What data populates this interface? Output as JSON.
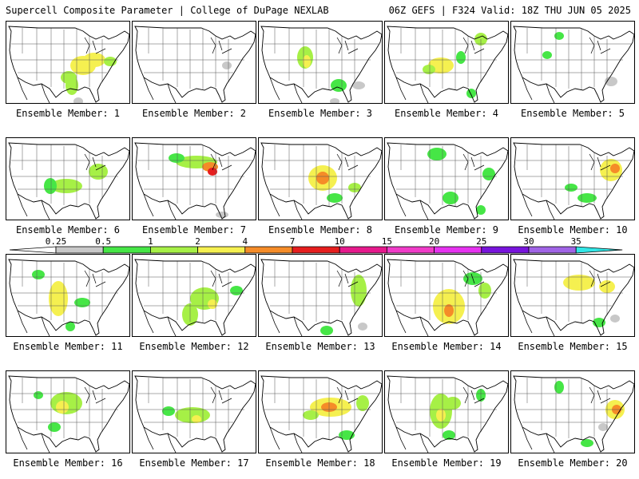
{
  "header": {
    "left": "Supercell Composite Parameter | College of DuPage NEXLAB",
    "right": "06Z GEFS | F324 Valid: 18Z THU JUN 05 2025"
  },
  "colorbar": {
    "bins": [
      {
        "low": 0.25,
        "label": "0.25",
        "color": "#c8c8c8"
      },
      {
        "low": 0.5,
        "label": "0.5",
        "color": "#46e646"
      },
      {
        "low": 1,
        "label": "1",
        "color": "#a6f046"
      },
      {
        "low": 2,
        "label": "2",
        "color": "#f5f050"
      },
      {
        "low": 4,
        "label": "4",
        "color": "#f58c28"
      },
      {
        "low": 7,
        "label": "7",
        "color": "#e61e1e"
      },
      {
        "low": 10,
        "label": "10",
        "color": "#e6198c"
      },
      {
        "low": 15,
        "label": "15",
        "color": "#f03cc8"
      },
      {
        "low": 20,
        "label": "20",
        "color": "#e632f0"
      },
      {
        "low": 25,
        "label": "25",
        "color": "#7814dc"
      },
      {
        "low": 30,
        "label": "30",
        "color": "#a064e6"
      },
      {
        "low": 35,
        "label": "35",
        "color": "#32e6e6"
      }
    ]
  },
  "panels": [
    {
      "label": "Ensemble Member: 1",
      "blobs": [
        [
          96,
          55,
          16,
          12,
          2
        ],
        [
          110,
          48,
          14,
          9,
          3
        ],
        [
          82,
          80,
          8,
          12,
          1
        ],
        [
          78,
          70,
          10,
          8,
          1
        ],
        [
          130,
          50,
          8,
          6,
          1
        ],
        [
          90,
          100,
          6,
          5,
          0.3
        ]
      ]
    },
    {
      "label": "Ensemble Member: 2",
      "blobs": [
        [
          118,
          55,
          6,
          5,
          0.4
        ]
      ]
    },
    {
      "label": "Ensemble Member: 3",
      "blobs": [
        [
          58,
          45,
          10,
          14,
          1
        ],
        [
          60,
          50,
          5,
          8,
          2
        ],
        [
          100,
          80,
          10,
          8,
          0.6
        ],
        [
          125,
          80,
          8,
          5,
          0.3
        ],
        [
          95,
          100,
          6,
          4,
          0.3
        ]
      ]
    },
    {
      "label": "Ensemble Member: 4",
      "blobs": [
        [
          70,
          55,
          16,
          10,
          2
        ],
        [
          55,
          60,
          8,
          6,
          1
        ],
        [
          120,
          22,
          8,
          8,
          1
        ],
        [
          95,
          45,
          6,
          8,
          0.6
        ],
        [
          108,
          90,
          6,
          6,
          0.5
        ]
      ]
    },
    {
      "label": "Ensemble Member: 5",
      "blobs": [
        [
          60,
          18,
          6,
          5,
          0.6
        ],
        [
          45,
          42,
          6,
          5,
          0.6
        ],
        [
          125,
          75,
          8,
          6,
          0.3
        ]
      ]
    },
    {
      "label": "Ensemble Member: 6",
      "blobs": [
        [
          75,
          60,
          20,
          9,
          1
        ],
        [
          115,
          42,
          12,
          10,
          1
        ],
        [
          55,
          60,
          8,
          10,
          0.6
        ]
      ]
    },
    {
      "label": "Ensemble Member: 7",
      "blobs": [
        [
          80,
          30,
          26,
          8,
          1
        ],
        [
          97,
          36,
          10,
          6,
          5
        ],
        [
          100,
          42,
          6,
          5,
          8
        ],
        [
          55,
          25,
          10,
          6,
          0.6
        ],
        [
          112,
          96,
          8,
          4,
          0.3
        ]
      ]
    },
    {
      "label": "Ensemble Member: 8",
      "blobs": [
        [
          80,
          50,
          18,
          16,
          2
        ],
        [
          80,
          50,
          8,
          8,
          6
        ],
        [
          120,
          62,
          8,
          6,
          1
        ],
        [
          95,
          75,
          10,
          6,
          0.6
        ]
      ]
    },
    {
      "label": "Ensemble Member: 9",
      "blobs": [
        [
          65,
          20,
          12,
          8,
          0.6
        ],
        [
          82,
          75,
          10,
          8,
          0.6
        ],
        [
          130,
          45,
          8,
          8,
          0.6
        ],
        [
          120,
          90,
          6,
          6,
          0.6
        ]
      ]
    },
    {
      "label": "Ensemble Member: 10",
      "blobs": [
        [
          125,
          40,
          14,
          14,
          2
        ],
        [
          130,
          38,
          6,
          6,
          5
        ],
        [
          95,
          75,
          12,
          6,
          0.6
        ],
        [
          75,
          62,
          8,
          5,
          0.6
        ]
      ]
    },
    {
      "label": "Ensemble Member: 11",
      "blobs": [
        [
          65,
          55,
          12,
          22,
          2
        ],
        [
          70,
          60,
          6,
          10,
          3
        ],
        [
          40,
          25,
          8,
          6,
          0.6
        ],
        [
          95,
          60,
          10,
          6,
          0.6
        ],
        [
          80,
          90,
          6,
          6,
          0.6
        ]
      ]
    },
    {
      "label": "Ensemble Member: 12",
      "blobs": [
        [
          90,
          55,
          18,
          14,
          1
        ],
        [
          72,
          75,
          10,
          14,
          1
        ],
        [
          100,
          62,
          6,
          6,
          3
        ],
        [
          130,
          45,
          8,
          6,
          0.6
        ]
      ]
    },
    {
      "label": "Ensemble Member: 13",
      "blobs": [
        [
          125,
          45,
          10,
          20,
          1
        ],
        [
          85,
          95,
          8,
          6,
          0.6
        ],
        [
          130,
          90,
          6,
          5,
          0.3
        ]
      ]
    },
    {
      "label": "Ensemble Member: 14",
      "blobs": [
        [
          80,
          65,
          20,
          22,
          2
        ],
        [
          80,
          70,
          6,
          8,
          4
        ],
        [
          110,
          30,
          12,
          8,
          0.6
        ],
        [
          125,
          45,
          8,
          10,
          1
        ]
      ]
    },
    {
      "label": "Ensemble Member: 15",
      "blobs": [
        [
          85,
          35,
          20,
          10,
          2
        ],
        [
          120,
          40,
          10,
          8,
          2
        ],
        [
          110,
          85,
          8,
          6,
          0.6
        ],
        [
          130,
          80,
          6,
          5,
          0.3
        ]
      ]
    },
    {
      "label": "Ensemble Member: 16",
      "blobs": [
        [
          75,
          40,
          20,
          14,
          1
        ],
        [
          70,
          45,
          8,
          8,
          3
        ],
        [
          40,
          30,
          6,
          5,
          0.6
        ],
        [
          60,
          70,
          8,
          6,
          0.6
        ]
      ]
    },
    {
      "label": "Ensemble Member: 17",
      "blobs": [
        [
          75,
          55,
          22,
          10,
          1
        ],
        [
          80,
          60,
          6,
          5,
          2
        ],
        [
          45,
          50,
          8,
          6,
          0.6
        ]
      ]
    },
    {
      "label": "Ensemble Member: 18",
      "blobs": [
        [
          90,
          45,
          26,
          12,
          2
        ],
        [
          88,
          45,
          10,
          6,
          6
        ],
        [
          65,
          55,
          10,
          6,
          1
        ],
        [
          130,
          40,
          8,
          10,
          1
        ],
        [
          110,
          80,
          10,
          6,
          0.6
        ]
      ]
    },
    {
      "label": "Ensemble Member: 19",
      "blobs": [
        [
          70,
          50,
          14,
          22,
          1
        ],
        [
          70,
          55,
          6,
          8,
          3
        ],
        [
          85,
          40,
          10,
          8,
          1
        ],
        [
          120,
          30,
          6,
          8,
          0.6
        ],
        [
          80,
          80,
          8,
          6,
          0.6
        ]
      ]
    },
    {
      "label": "Ensemble Member: 20",
      "blobs": [
        [
          130,
          48,
          12,
          12,
          2
        ],
        [
          132,
          48,
          6,
          6,
          5
        ],
        [
          60,
          20,
          6,
          8,
          0.6
        ],
        [
          95,
          90,
          8,
          5,
          0.6
        ],
        [
          115,
          70,
          6,
          5,
          0.3
        ]
      ]
    }
  ]
}
